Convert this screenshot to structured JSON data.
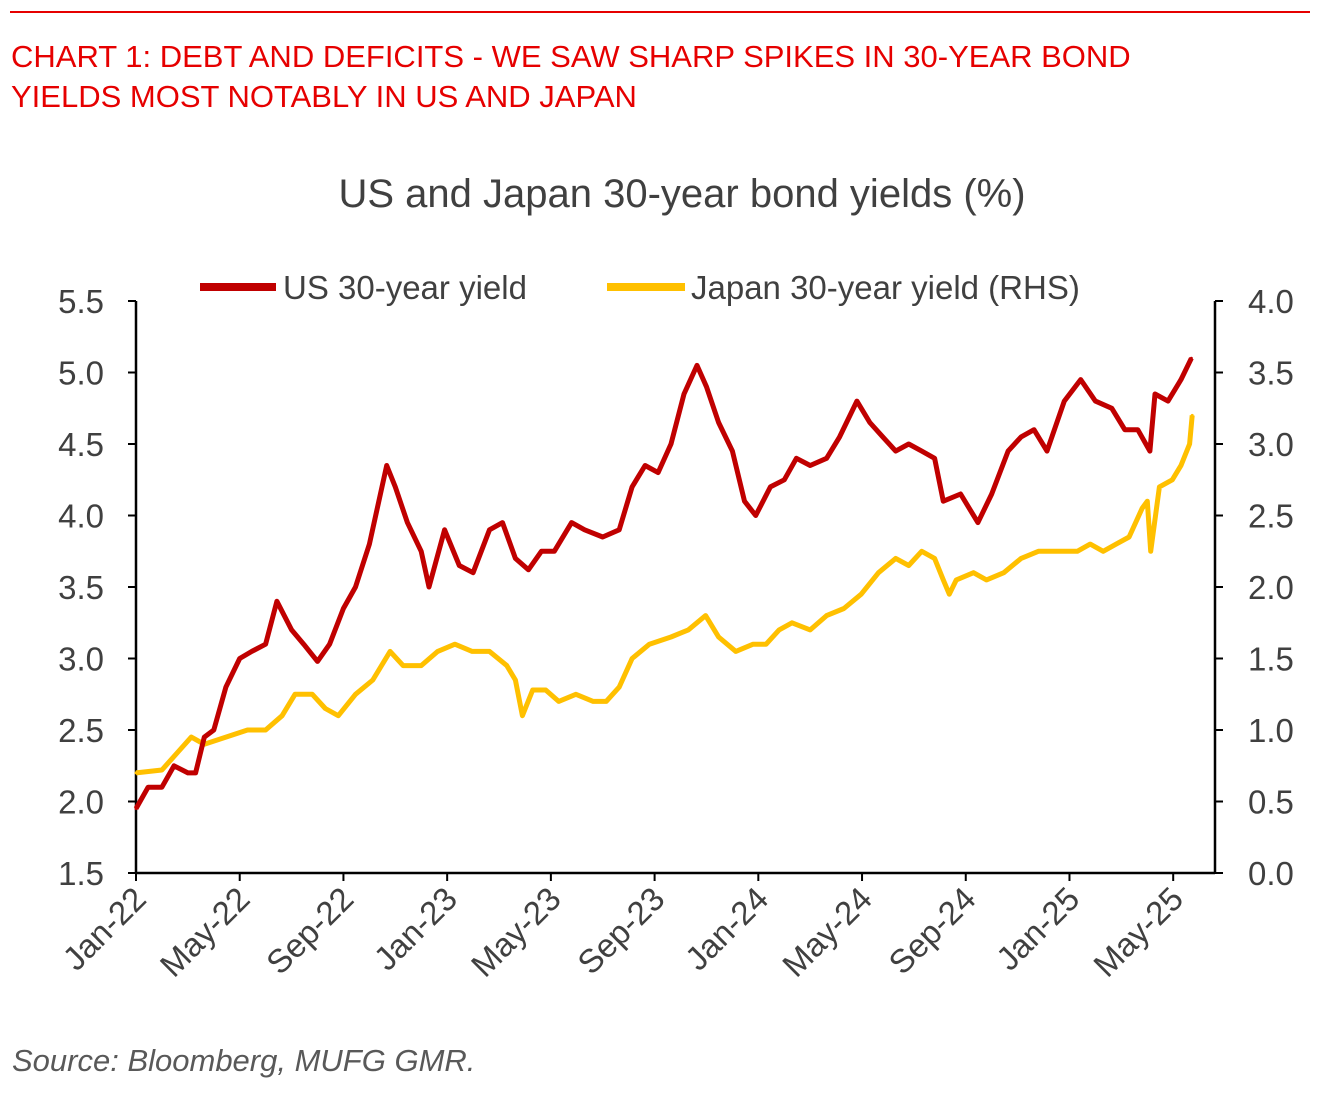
{
  "header": {
    "title_line1": "CHART 1: DEBT AND DEFICITS - WE SAW SHARP SPIKES IN 30-YEAR BOND",
    "title_line2": "YIELDS MOST NOTABLY IN US AND JAPAN"
  },
  "source": "Source: Bloomberg, MUFG GMR.",
  "chart_data": {
    "type": "line",
    "title": "US and Japan 30-year bond yields (%)",
    "xlabel": "",
    "ylabel": "",
    "y2label": "",
    "ylim": [
      1.5,
      5.5
    ],
    "y2lim": [
      0.0,
      4.0
    ],
    "yticks": [
      "5.5",
      "5.0",
      "4.5",
      "4.0",
      "3.5",
      "3.0",
      "2.5",
      "2.0",
      "1.5"
    ],
    "y2ticks": [
      "4.0",
      "3.5",
      "3.0",
      "2.5",
      "2.0",
      "1.5",
      "1.0",
      "0.5",
      "0.0"
    ],
    "xticks": [
      "Jan-22",
      "May-22",
      "Sep-22",
      "Jan-23",
      "May-23",
      "Sep-23",
      "Jan-24",
      "May-24",
      "Sep-24",
      "Jan-25",
      "May-25"
    ],
    "legend_position": "top",
    "grid": false,
    "series": [
      {
        "name": "US 30-year yield",
        "axis": "left",
        "color": "#c00000",
        "points": [
          [
            "2022-01-01",
            1.95
          ],
          [
            "2022-01-15",
            2.1
          ],
          [
            "2022-02-01",
            2.1
          ],
          [
            "2022-02-15",
            2.25
          ],
          [
            "2022-03-01",
            2.2
          ],
          [
            "2022-03-10",
            2.2
          ],
          [
            "2022-03-20",
            2.45
          ],
          [
            "2022-04-01",
            2.5
          ],
          [
            "2022-04-15",
            2.8
          ],
          [
            "2022-05-01",
            3.0
          ],
          [
            "2022-05-15",
            3.05
          ],
          [
            "2022-06-01",
            3.1
          ],
          [
            "2022-06-14",
            3.4
          ],
          [
            "2022-07-01",
            3.2
          ],
          [
            "2022-07-15",
            3.1
          ],
          [
            "2022-08-01",
            2.98
          ],
          [
            "2022-08-15",
            3.1
          ],
          [
            "2022-09-01",
            3.35
          ],
          [
            "2022-09-15",
            3.5
          ],
          [
            "2022-10-01",
            3.8
          ],
          [
            "2022-10-21",
            4.35
          ],
          [
            "2022-11-01",
            4.2
          ],
          [
            "2022-11-15",
            3.95
          ],
          [
            "2022-12-01",
            3.75
          ],
          [
            "2022-12-10",
            3.5
          ],
          [
            "2022-12-28",
            3.9
          ],
          [
            "2023-01-15",
            3.65
          ],
          [
            "2023-02-01",
            3.6
          ],
          [
            "2023-02-20",
            3.9
          ],
          [
            "2023-03-05",
            3.95
          ],
          [
            "2023-03-20",
            3.7
          ],
          [
            "2023-04-05",
            3.62
          ],
          [
            "2023-04-20",
            3.75
          ],
          [
            "2023-05-05",
            3.75
          ],
          [
            "2023-05-25",
            3.95
          ],
          [
            "2023-06-10",
            3.9
          ],
          [
            "2023-07-01",
            3.85
          ],
          [
            "2023-07-20",
            3.9
          ],
          [
            "2023-08-05",
            4.2
          ],
          [
            "2023-08-20",
            4.35
          ],
          [
            "2023-09-05",
            4.3
          ],
          [
            "2023-09-20",
            4.5
          ],
          [
            "2023-10-05",
            4.85
          ],
          [
            "2023-10-20",
            5.05
          ],
          [
            "2023-11-01",
            4.9
          ],
          [
            "2023-11-15",
            4.65
          ],
          [
            "2023-12-01",
            4.45
          ],
          [
            "2023-12-15",
            4.1
          ],
          [
            "2023-12-28",
            4.0
          ],
          [
            "2024-01-15",
            4.2
          ],
          [
            "2024-02-01",
            4.25
          ],
          [
            "2024-02-15",
            4.4
          ],
          [
            "2024-03-01",
            4.35
          ],
          [
            "2024-03-20",
            4.4
          ],
          [
            "2024-04-05",
            4.55
          ],
          [
            "2024-04-25",
            4.8
          ],
          [
            "2024-05-10",
            4.65
          ],
          [
            "2024-05-25",
            4.55
          ],
          [
            "2024-06-10",
            4.45
          ],
          [
            "2024-06-25",
            4.5
          ],
          [
            "2024-07-10",
            4.45
          ],
          [
            "2024-07-25",
            4.4
          ],
          [
            "2024-08-05",
            4.1
          ],
          [
            "2024-08-25",
            4.15
          ],
          [
            "2024-09-15",
            3.95
          ],
          [
            "2024-10-01",
            4.15
          ],
          [
            "2024-10-20",
            4.45
          ],
          [
            "2024-11-05",
            4.55
          ],
          [
            "2024-11-20",
            4.6
          ],
          [
            "2024-12-05",
            4.45
          ],
          [
            "2024-12-25",
            4.8
          ],
          [
            "2025-01-14",
            4.95
          ],
          [
            "2025-02-01",
            4.8
          ],
          [
            "2025-02-20",
            4.75
          ],
          [
            "2025-03-05",
            4.6
          ],
          [
            "2025-03-20",
            4.6
          ],
          [
            "2025-04-04",
            4.45
          ],
          [
            "2025-04-10",
            4.85
          ],
          [
            "2025-04-25",
            4.8
          ],
          [
            "2025-05-10",
            4.95
          ],
          [
            "2025-05-22",
            5.1
          ]
        ]
      },
      {
        "name": "Japan 30-year yield (RHS)",
        "axis": "right",
        "color": "#ffc000",
        "points": [
          [
            "2022-01-01",
            0.7
          ],
          [
            "2022-02-01",
            0.72
          ],
          [
            "2022-02-20",
            0.85
          ],
          [
            "2022-03-05",
            0.95
          ],
          [
            "2022-03-20",
            0.9
          ],
          [
            "2022-04-15",
            0.95
          ],
          [
            "2022-05-10",
            1.0
          ],
          [
            "2022-06-01",
            1.0
          ],
          [
            "2022-06-20",
            1.1
          ],
          [
            "2022-07-05",
            1.25
          ],
          [
            "2022-07-25",
            1.25
          ],
          [
            "2022-08-10",
            1.15
          ],
          [
            "2022-08-25",
            1.1
          ],
          [
            "2022-09-15",
            1.25
          ],
          [
            "2022-10-05",
            1.35
          ],
          [
            "2022-10-25",
            1.55
          ],
          [
            "2022-11-10",
            1.45
          ],
          [
            "2022-12-01",
            1.45
          ],
          [
            "2022-12-20",
            1.55
          ],
          [
            "2023-01-10",
            1.6
          ],
          [
            "2023-01-30",
            1.55
          ],
          [
            "2023-02-20",
            1.55
          ],
          [
            "2023-03-10",
            1.45
          ],
          [
            "2023-03-20",
            1.35
          ],
          [
            "2023-03-28",
            1.1
          ],
          [
            "2023-04-10",
            1.28
          ],
          [
            "2023-04-25",
            1.28
          ],
          [
            "2023-05-10",
            1.2
          ],
          [
            "2023-05-30",
            1.25
          ],
          [
            "2023-06-20",
            1.2
          ],
          [
            "2023-07-05",
            1.2
          ],
          [
            "2023-07-20",
            1.3
          ],
          [
            "2023-08-05",
            1.5
          ],
          [
            "2023-08-25",
            1.6
          ],
          [
            "2023-09-20",
            1.65
          ],
          [
            "2023-10-10",
            1.7
          ],
          [
            "2023-10-30",
            1.8
          ],
          [
            "2023-11-15",
            1.65
          ],
          [
            "2023-12-05",
            1.55
          ],
          [
            "2023-12-25",
            1.6
          ],
          [
            "2024-01-10",
            1.6
          ],
          [
            "2024-01-25",
            1.7
          ],
          [
            "2024-02-10",
            1.75
          ],
          [
            "2024-03-01",
            1.7
          ],
          [
            "2024-03-20",
            1.8
          ],
          [
            "2024-04-10",
            1.85
          ],
          [
            "2024-04-30",
            1.95
          ],
          [
            "2024-05-20",
            2.1
          ],
          [
            "2024-06-10",
            2.2
          ],
          [
            "2024-06-25",
            2.15
          ],
          [
            "2024-07-10",
            2.25
          ],
          [
            "2024-07-25",
            2.2
          ],
          [
            "2024-08-05",
            2.05
          ],
          [
            "2024-08-12",
            1.95
          ],
          [
            "2024-08-20",
            2.05
          ],
          [
            "2024-09-10",
            2.1
          ],
          [
            "2024-09-25",
            2.05
          ],
          [
            "2024-10-15",
            2.1
          ],
          [
            "2024-11-05",
            2.2
          ],
          [
            "2024-11-25",
            2.25
          ],
          [
            "2024-12-15",
            2.25
          ],
          [
            "2025-01-10",
            2.25
          ],
          [
            "2025-01-25",
            2.3
          ],
          [
            "2025-02-10",
            2.25
          ],
          [
            "2025-02-25",
            2.3
          ],
          [
            "2025-03-10",
            2.35
          ],
          [
            "2025-03-25",
            2.55
          ],
          [
            "2025-04-01",
            2.6
          ],
          [
            "2025-04-05",
            2.25
          ],
          [
            "2025-04-15",
            2.7
          ],
          [
            "2025-04-30",
            2.75
          ],
          [
            "2025-05-10",
            2.85
          ],
          [
            "2025-05-20",
            3.0
          ],
          [
            "2025-05-23",
            3.2
          ]
        ]
      }
    ]
  }
}
